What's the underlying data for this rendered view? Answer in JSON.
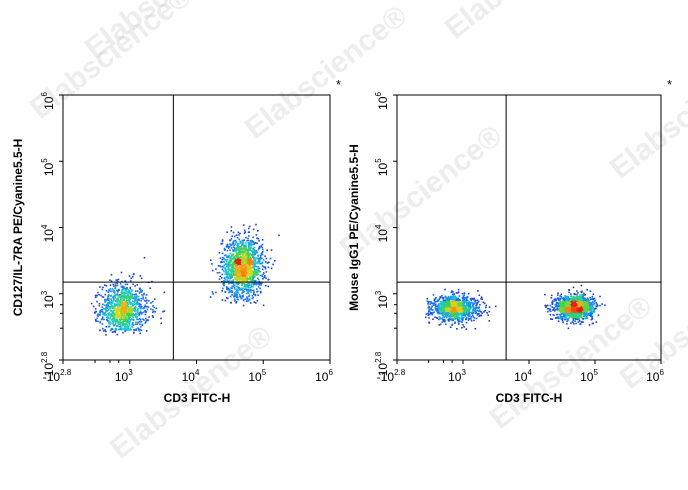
{
  "watermark": "Elabscience",
  "watermark_mark": "®",
  "chart_data": [
    {
      "type": "scatter",
      "subtype": "flow-cytometry-density-dot-plot",
      "corner_mark": "*",
      "xlabel": "CD3 FITC-H",
      "ylabel": "CD127/IL-7RA PE/Cyanine5.5-H",
      "x_scale": "biexponential",
      "y_scale": "biexponential",
      "xlim": [
        -631,
        1000000
      ],
      "ylim": [
        -631,
        1000000
      ],
      "x_ticks": [
        {
          "value": -631,
          "base": "-10",
          "exp": "2.8"
        },
        {
          "value": 1000,
          "base": "10",
          "exp": "3"
        },
        {
          "value": 10000,
          "base": "10",
          "exp": "4"
        },
        {
          "value": 100000,
          "base": "10",
          "exp": "5"
        },
        {
          "value": 1000000,
          "base": "10",
          "exp": "6"
        }
      ],
      "y_ticks": [
        {
          "value": -631,
          "base": "-10",
          "exp": "2.8"
        },
        {
          "value": 1000,
          "base": "10",
          "exp": "3"
        },
        {
          "value": 10000,
          "base": "10",
          "exp": "4"
        },
        {
          "value": 100000,
          "base": "10",
          "exp": "5"
        },
        {
          "value": 1000000,
          "base": "10",
          "exp": "6"
        }
      ],
      "quadrant_gate": {
        "x": 4500,
        "y": 1500
      },
      "populations": [
        {
          "name": "CD3- CD127-",
          "center_x": 700,
          "center_y": 500,
          "spread_x": 0.22,
          "spread_y": 0.25,
          "weight": 0.42
        },
        {
          "name": "CD3+ CD127+",
          "center_x": 48000,
          "center_y": 2600,
          "spread_x": 0.15,
          "spread_y": 0.22,
          "weight": 0.58
        }
      ]
    },
    {
      "type": "scatter",
      "subtype": "flow-cytometry-density-dot-plot",
      "corner_mark": "*",
      "xlabel": "CD3 FITC-H",
      "ylabel": "Mouse IgG1 PE/Cyanine5.5-H",
      "x_scale": "biexponential",
      "y_scale": "biexponential",
      "xlim": [
        -631,
        1000000
      ],
      "ylim": [
        -631,
        1000000
      ],
      "x_ticks": [
        {
          "value": -631,
          "base": "-10",
          "exp": "2.8"
        },
        {
          "value": 1000,
          "base": "10",
          "exp": "3"
        },
        {
          "value": 10000,
          "base": "10",
          "exp": "4"
        },
        {
          "value": 100000,
          "base": "10",
          "exp": "5"
        },
        {
          "value": 1000000,
          "base": "10",
          "exp": "6"
        }
      ],
      "y_ticks": [
        {
          "value": -631,
          "base": "-10",
          "exp": "2.8"
        },
        {
          "value": 1000,
          "base": "10",
          "exp": "3"
        },
        {
          "value": 10000,
          "base": "10",
          "exp": "4"
        },
        {
          "value": 100000,
          "base": "10",
          "exp": "5"
        },
        {
          "value": 1000000,
          "base": "10",
          "exp": "6"
        }
      ],
      "quadrant_gate": {
        "x": 4500,
        "y": 1500
      },
      "populations": [
        {
          "name": "CD3- IgG1-",
          "center_x": 650,
          "center_y": 520,
          "spread_x": 0.22,
          "spread_y": 0.12,
          "weight": 0.45
        },
        {
          "name": "CD3+ IgG1-",
          "center_x": 48000,
          "center_y": 550,
          "spread_x": 0.14,
          "spread_y": 0.12,
          "weight": 0.55
        }
      ]
    }
  ]
}
